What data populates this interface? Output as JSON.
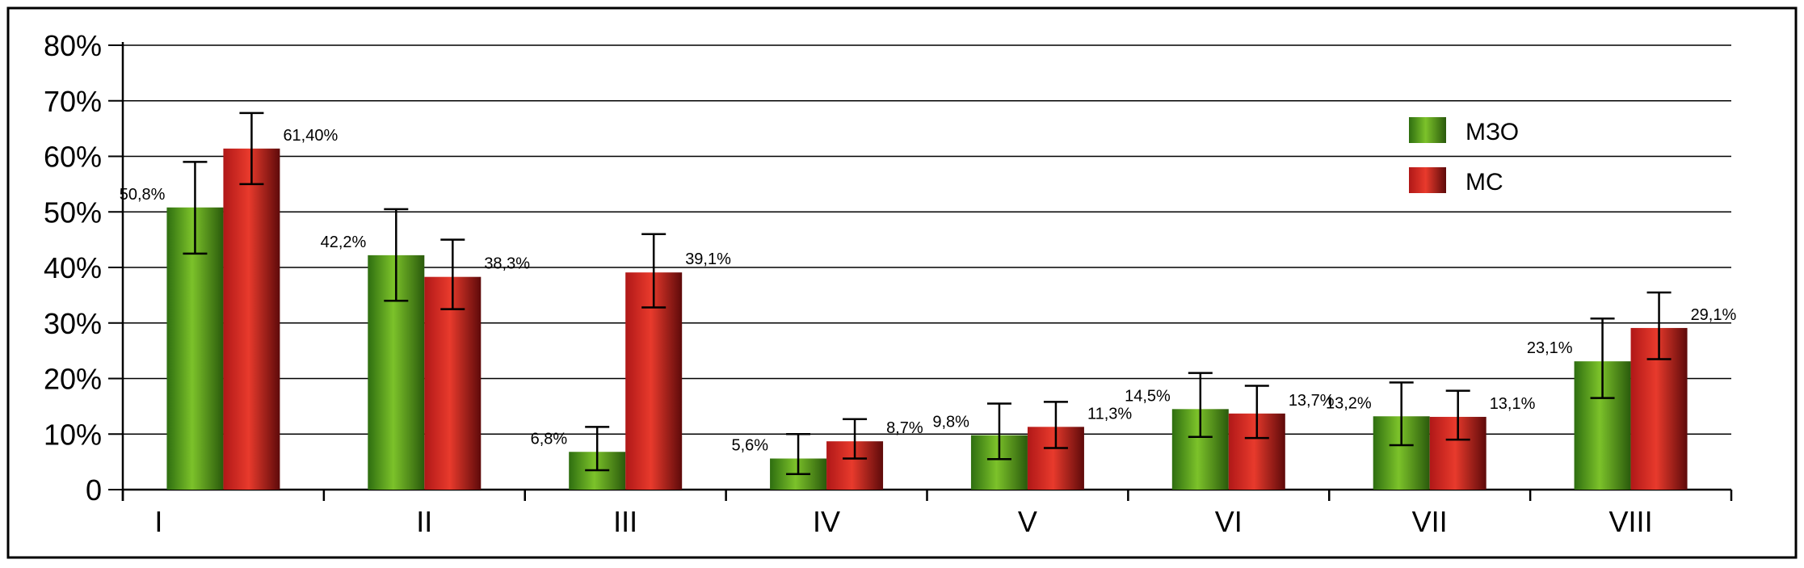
{
  "chart_data": {
    "type": "bar",
    "categories": [
      "I",
      "II",
      "III",
      "IV",
      "V",
      "VI",
      "VII",
      "VIII"
    ],
    "ylim": [
      0,
      80
    ],
    "yticks": [
      {
        "value": 0,
        "label": "0"
      },
      {
        "value": 10,
        "label": "10%"
      },
      {
        "value": 20,
        "label": "20%"
      },
      {
        "value": 30,
        "label": "30%"
      },
      {
        "value": 40,
        "label": "40%"
      },
      {
        "value": 50,
        "label": "50%"
      },
      {
        "value": 60,
        "label": "60%"
      },
      {
        "value": 70,
        "label": "70%"
      },
      {
        "value": 80,
        "label": "80%"
      }
    ],
    "grid": true,
    "legend_position": "top-right",
    "series": [
      {
        "name": "МЗО",
        "color": "#4e9a1a",
        "values": [
          50.8,
          42.2,
          6.8,
          5.6,
          9.8,
          14.5,
          13.2,
          23.1
        ],
        "labels": [
          "50,8%",
          "42,2%",
          "6,8%",
          "5,6%",
          "9,8%",
          "14,5%",
          "13,2%",
          "23,1%"
        ],
        "error_low": [
          42.5,
          34.0,
          3.5,
          2.8,
          5.5,
          9.5,
          8.0,
          16.5
        ],
        "error_high": [
          59.0,
          50.5,
          11.3,
          10.0,
          15.5,
          21.0,
          19.3,
          30.8
        ]
      },
      {
        "name": "МС",
        "color": "#c8201e",
        "values": [
          61.4,
          38.3,
          39.1,
          8.7,
          11.3,
          13.7,
          13.1,
          29.1
        ],
        "labels": [
          "61,40%",
          "38,3%",
          "39,1%",
          "8,7%",
          "11,3%",
          "13,7%",
          "13,1%",
          "29,1%"
        ],
        "error_low": [
          55.0,
          32.5,
          32.8,
          5.6,
          7.5,
          9.3,
          9.0,
          23.5
        ],
        "error_high": [
          67.8,
          45.0,
          46.0,
          12.7,
          15.8,
          18.7,
          17.8,
          35.5
        ]
      }
    ]
  }
}
